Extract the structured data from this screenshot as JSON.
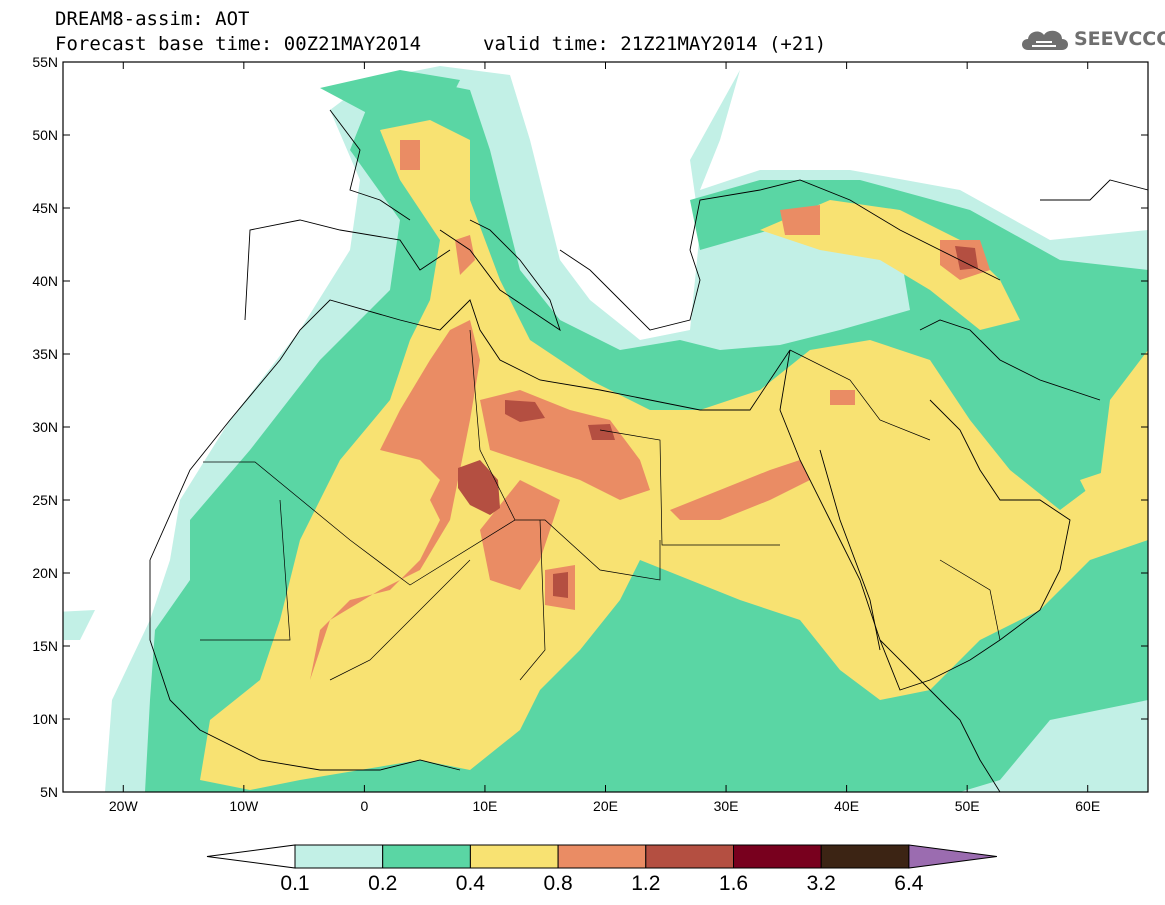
{
  "title": {
    "line1": "DREAM8-assim: AOT",
    "line2": "Forecast base time: 00Z21MAY2014",
    "line2b": "valid time: 21Z21MAY2014 (+21)"
  },
  "logo": {
    "text": "SEEVCCC",
    "icon": "cloud-icon"
  },
  "map": {
    "lat_ticks": [
      "55N",
      "50N",
      "45N",
      "40N",
      "35N",
      "30N",
      "25N",
      "20N",
      "15N",
      "10N",
      "5N"
    ],
    "lon_ticks": [
      "20W",
      "10W",
      "0",
      "10E",
      "20E",
      "30E",
      "40E",
      "50E",
      "60E"
    ],
    "lon_range": [
      -25,
      65
    ],
    "lat_range": [
      5,
      55
    ]
  },
  "colorbar": {
    "labels": [
      "0.1",
      "0.2",
      "0.4",
      "0.8",
      "1.2",
      "1.6",
      "3.2",
      "6.4"
    ],
    "colors": [
      "#ffffff",
      "#c2f0e6",
      "#5ad6a4",
      "#f8e272",
      "#ea8c64",
      "#b44f41",
      "#78001e",
      "#3c2414",
      "#9b6cb0"
    ]
  },
  "colors": {
    "c1": "#c2f0e6",
    "c2": "#5ad6a4",
    "c3": "#f8e272",
    "c4": "#ea8c64",
    "c5": "#b44f41",
    "c6": "#8b2e2e"
  }
}
